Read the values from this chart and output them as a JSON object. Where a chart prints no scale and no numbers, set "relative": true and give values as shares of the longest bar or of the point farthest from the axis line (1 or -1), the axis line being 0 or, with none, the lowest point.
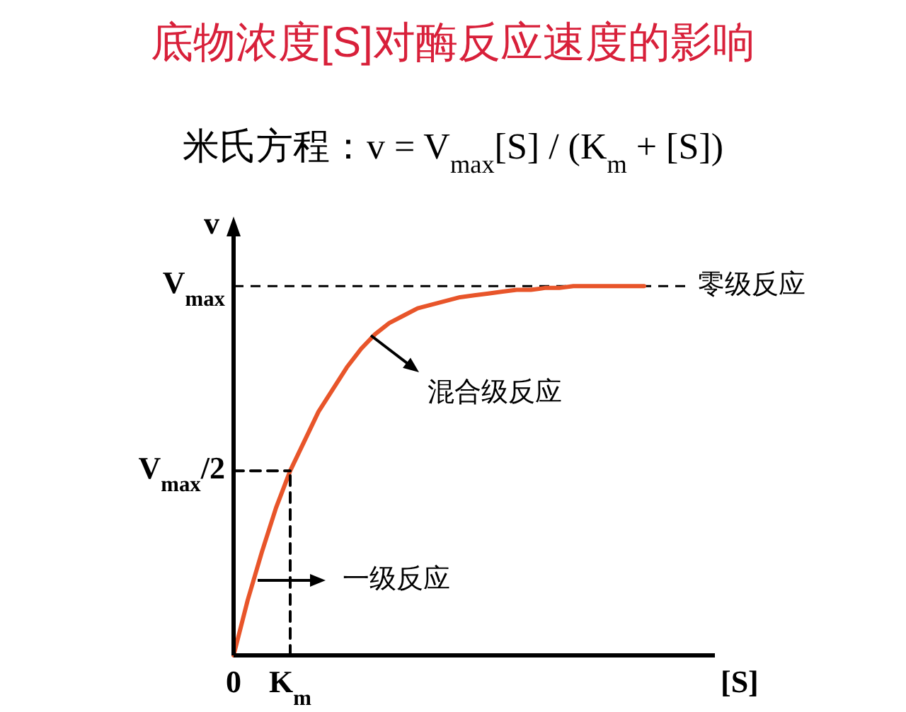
{
  "chart_data": {
    "type": "line",
    "relative": true,
    "title": "底物浓度[S]对酶反应速度的影响",
    "subtitle": "米氏方程：v = V$_{max}$[S] / (K$_{m}$ + [S])",
    "xlabel": "[S]",
    "ylabel": "v",
    "categories": [
      "0",
      null,
      null,
      null,
      "K$_{m}$",
      null,
      null,
      null,
      null,
      null,
      null,
      null,
      null,
      null,
      null,
      null,
      null,
      null,
      null,
      null,
      null,
      null,
      null,
      null,
      null,
      null,
      null,
      null,
      null,
      null,
      null,
      null,
      null,
      null,
      null
    ],
    "series": [
      {
        "color": "#e8552a",
        "values": [
          0,
          0.15,
          0.28,
          0.4,
          0.5,
          0.58,
          0.66,
          0.72,
          0.78,
          0.83,
          0.87,
          0.9,
          0.92,
          0.94,
          0.95,
          0.96,
          0.97,
          0.975,
          0.98,
          0.985,
          0.99,
          0.99,
          0.995,
          0.995,
          1,
          1,
          1,
          1,
          1,
          1,
          null,
          null,
          null,
          null,
          null
        ]
      },
      {
        "color": "#000000",
        "line_style": "dashed",
        "values": [
          0.5,
          0.5,
          0.5,
          0.5,
          0.5,
          null,
          null,
          null,
          null,
          null,
          null,
          null,
          null,
          null,
          null,
          null,
          null,
          null,
          null,
          null,
          null,
          null,
          null,
          null,
          null,
          null,
          null,
          null,
          null,
          null,
          null,
          null,
          null,
          null,
          null
        ]
      },
      {
        "color": "#000000",
        "line_style": "dashed",
        "x": [
          "K$_{m}$",
          "K$_{m}$"
        ],
        "values": [
          0,
          0.5
        ]
      }
    ],
    "ref_lines": [
      {
        "axis": "y",
        "value": 1,
        "label": "零级反应",
        "line_style": "dashed",
        "color": "#000000"
      }
    ],
    "annotations": [
      "V$_{max}$/2",
      "V$_{max}$",
      "混合级反应",
      "一级反应"
    ],
    "marker": "none"
  }
}
